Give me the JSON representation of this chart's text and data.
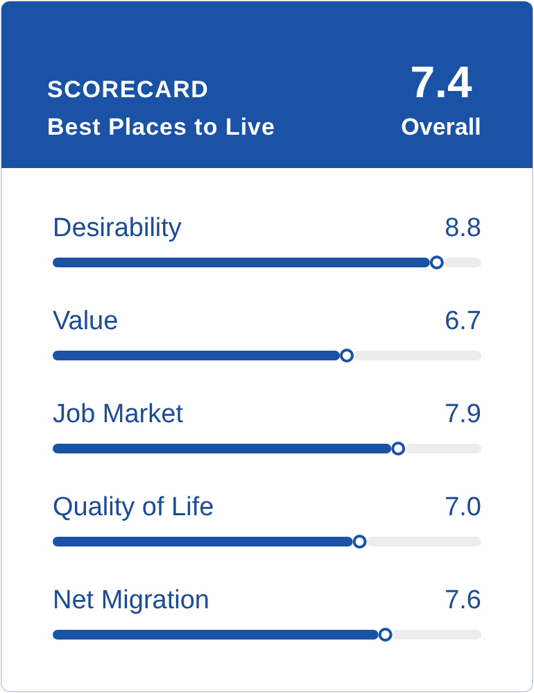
{
  "chart_data": {
    "type": "bar",
    "orientation": "horizontal",
    "title": "SCORECARD",
    "subtitle": "Best Places to Live",
    "annotations": [
      "7.4",
      "Overall"
    ],
    "categories": [
      "Desirability",
      "Value",
      "Job Market",
      "Quality of Life",
      "Net Migration"
    ],
    "values": [
      8.8,
      6.7,
      7.9,
      7.0,
      7.6
    ],
    "value_labels": [
      "8.8",
      "6.7",
      "7.9",
      "7.0",
      "7.6"
    ],
    "color": "#1a52a5",
    "xlim": [
      0,
      10
    ]
  }
}
